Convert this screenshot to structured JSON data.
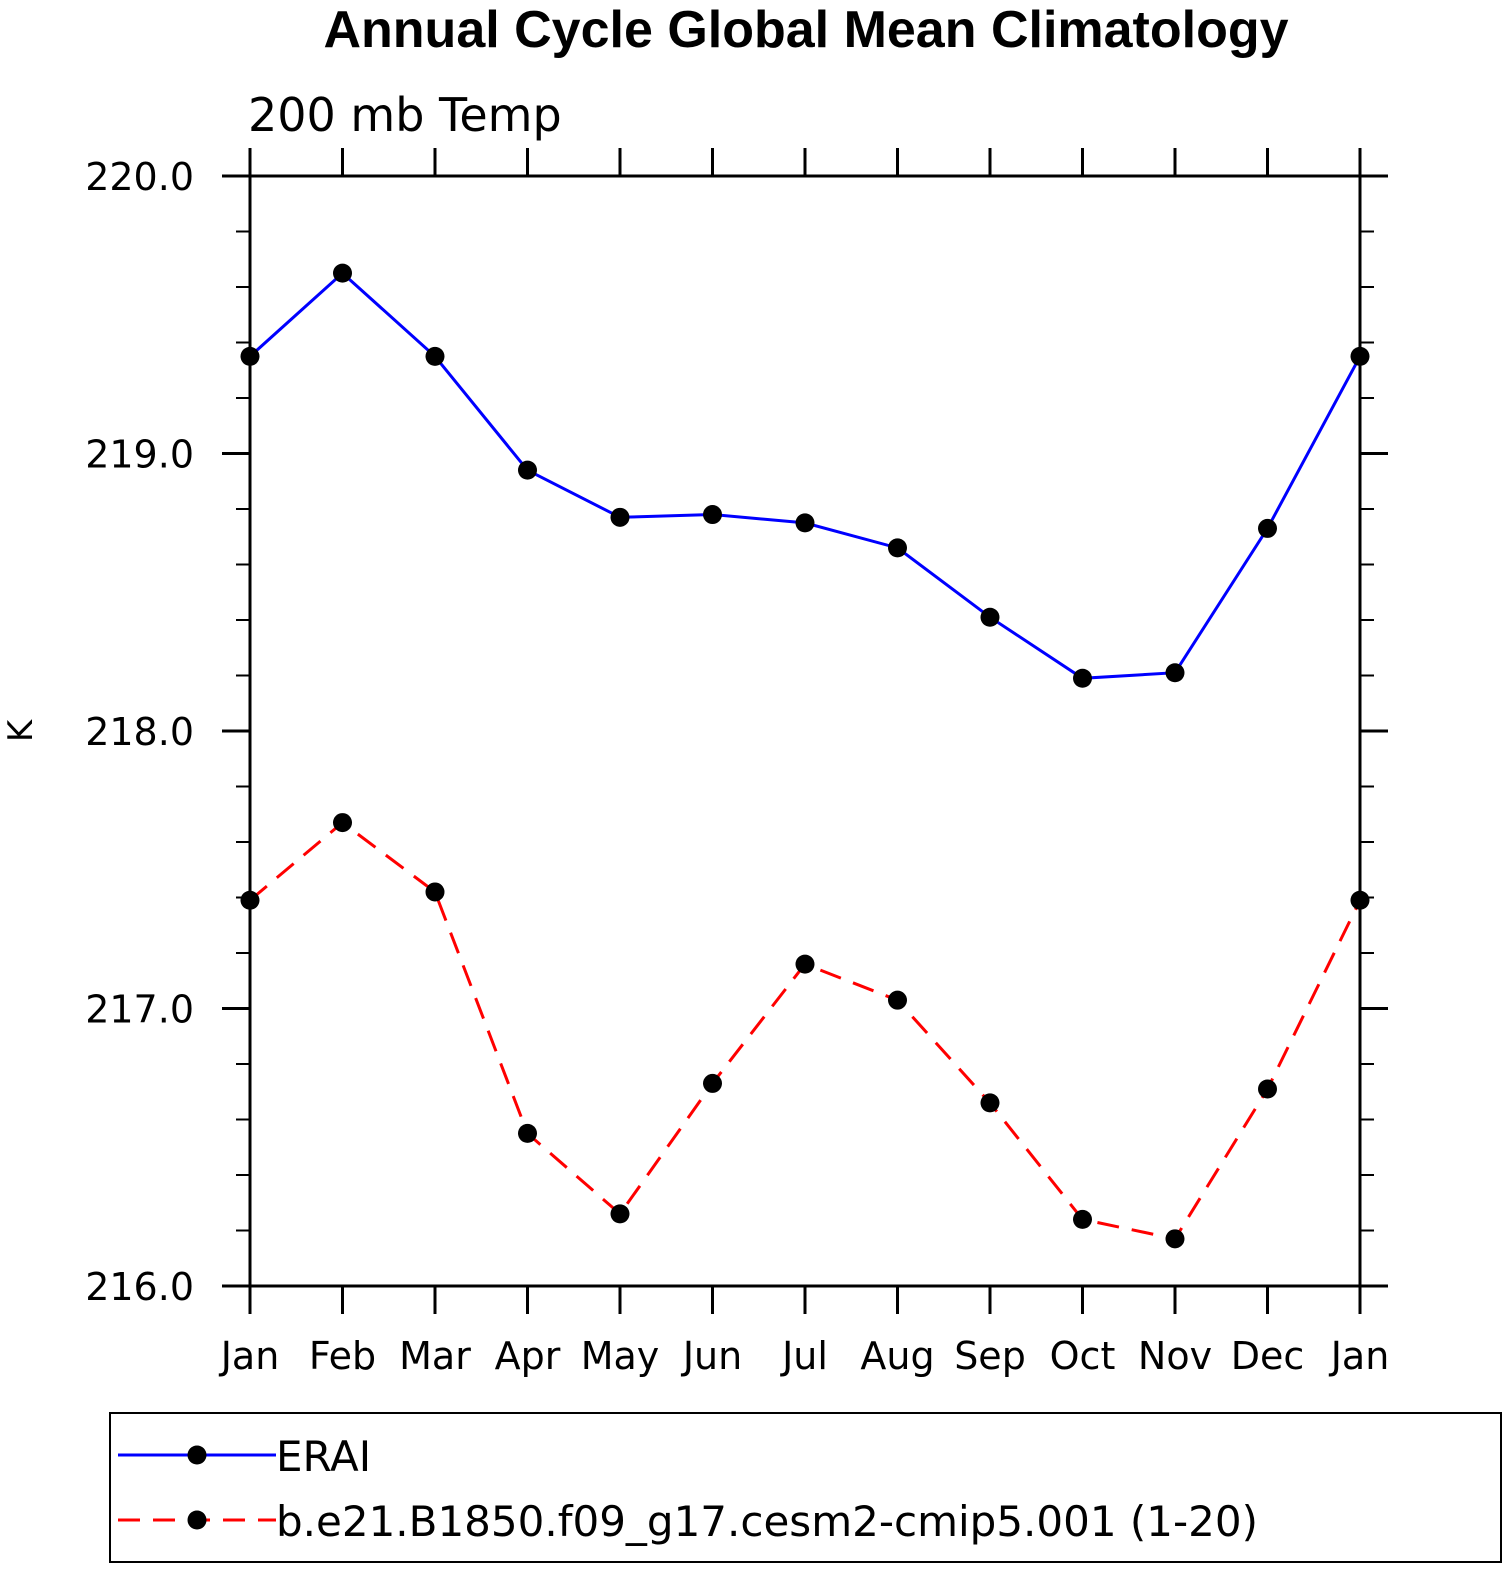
{
  "chart_data": {
    "type": "line",
    "title": "Annual Cycle Global Mean Climatology",
    "subtitle": "200 mb Temp",
    "xlabel": "",
    "ylabel": "K",
    "categories": [
      "Jan",
      "Feb",
      "Mar",
      "Apr",
      "May",
      "Jun",
      "Jul",
      "Aug",
      "Sep",
      "Oct",
      "Nov",
      "Dec",
      "Jan"
    ],
    "ylim": [
      216.0,
      220.0
    ],
    "yticks": [
      "220.0",
      "219.0",
      "218.0",
      "217.0",
      "216.0"
    ],
    "ytick_values": [
      220.0,
      219.0,
      218.0,
      217.0,
      216.0
    ],
    "grid": false,
    "legend_position": "bottom",
    "series": [
      {
        "name": "ERAI",
        "color": "#0000ff",
        "line_style": "solid",
        "marker": "filled-circle",
        "values": [
          219.35,
          219.65,
          219.35,
          218.94,
          218.77,
          218.78,
          218.75,
          218.66,
          218.41,
          218.19,
          218.21,
          218.73,
          219.35
        ]
      },
      {
        "name": "b.e21.B1850.f09_g17.cesm2-cmip5.001 (1-20)",
        "color": "#ff0000",
        "line_style": "dashed",
        "marker": "filled-circle",
        "values": [
          217.39,
          217.67,
          217.42,
          216.55,
          216.26,
          216.73,
          217.16,
          217.03,
          216.66,
          216.24,
          216.17,
          216.71,
          217.39
        ]
      }
    ]
  }
}
